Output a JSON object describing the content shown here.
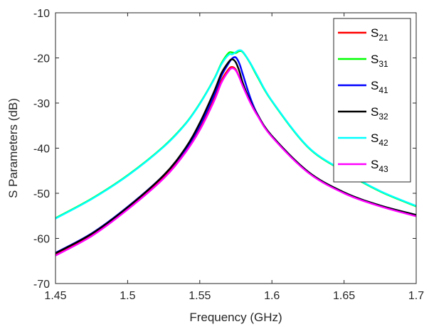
{
  "chart_data": {
    "type": "line",
    "title": "",
    "xlabel": "Frequency (GHz)",
    "ylabel": "S Parameters (dB)",
    "xlim": [
      1.45,
      1.7
    ],
    "ylim": [
      -70,
      -10
    ],
    "x_ticks": [
      "1.45",
      "1.5",
      "1.55",
      "1.6",
      "1.65",
      "1.7"
    ],
    "y_ticks": [
      "-10",
      "-20",
      "-30",
      "-40",
      "-50",
      "-60",
      "-70"
    ],
    "grid": false,
    "legend_position": "top-right",
    "x": [
      1.45,
      1.475,
      1.5,
      1.525,
      1.54,
      1.55,
      1.56,
      1.565,
      1.57,
      1.5725,
      1.575,
      1.5775,
      1.58,
      1.585,
      1.59,
      1.6,
      1.625,
      1.65,
      1.675,
      1.7
    ],
    "series": [
      {
        "name_base": "S",
        "name_sub": "21",
        "color": "#ff0000",
        "values": [
          -63.5,
          -59.2,
          -53.3,
          -46.3,
          -40.6,
          -35.5,
          -28.9,
          -25.0,
          -22.5,
          -22.0,
          -22.6,
          -24.3,
          -26.3,
          -29.8,
          -32.7,
          -37.4,
          -45.3,
          -49.9,
          -52.8,
          -55.0
        ]
      },
      {
        "name_base": "S",
        "name_sub": "31",
        "color": "#00ff00",
        "values": [
          -55.5,
          -51.2,
          -46.0,
          -39.6,
          -34.6,
          -30.1,
          -24.6,
          -21.2,
          -18.9,
          -18.8,
          -18.9,
          -18.5,
          -18.8,
          -21.2,
          -24.2,
          -29.6,
          -39.8,
          -45.2,
          -49.6,
          -52.9
        ]
      },
      {
        "name_base": "S",
        "name_sub": "41",
        "color": "#0000ff",
        "values": [
          -63.2,
          -58.9,
          -53.0,
          -46.0,
          -40.3,
          -35.0,
          -28.2,
          -24.0,
          -21.2,
          -20.1,
          -19.9,
          -21.3,
          -23.8,
          -28.8,
          -32.5,
          -37.3,
          -45.2,
          -49.8,
          -52.7,
          -54.8
        ]
      },
      {
        "name_base": "S",
        "name_sub": "32",
        "color": "#000000",
        "values": [
          -63.3,
          -59.0,
          -53.1,
          -46.0,
          -40.0,
          -34.4,
          -27.4,
          -23.4,
          -20.9,
          -20.3,
          -21.0,
          -23.0,
          -25.7,
          -29.6,
          -32.6,
          -37.3,
          -45.2,
          -49.8,
          -52.7,
          -54.8
        ]
      },
      {
        "name_base": "S",
        "name_sub": "42",
        "color": "#00ffff",
        "values": [
          -55.6,
          -51.3,
          -46.1,
          -39.7,
          -34.7,
          -30.2,
          -24.7,
          -21.4,
          -19.3,
          -19.2,
          -18.7,
          -18.3,
          -18.7,
          -21.1,
          -24.0,
          -29.5,
          -39.7,
          -45.1,
          -49.5,
          -52.8
        ]
      },
      {
        "name_base": "S",
        "name_sub": "43",
        "color": "#ff00ff",
        "values": [
          -63.8,
          -59.5,
          -53.6,
          -46.7,
          -41.0,
          -36.0,
          -29.5,
          -25.5,
          -22.9,
          -22.3,
          -22.8,
          -24.4,
          -26.4,
          -29.9,
          -32.8,
          -37.5,
          -45.4,
          -50.0,
          -52.9,
          -55.1
        ]
      }
    ]
  }
}
